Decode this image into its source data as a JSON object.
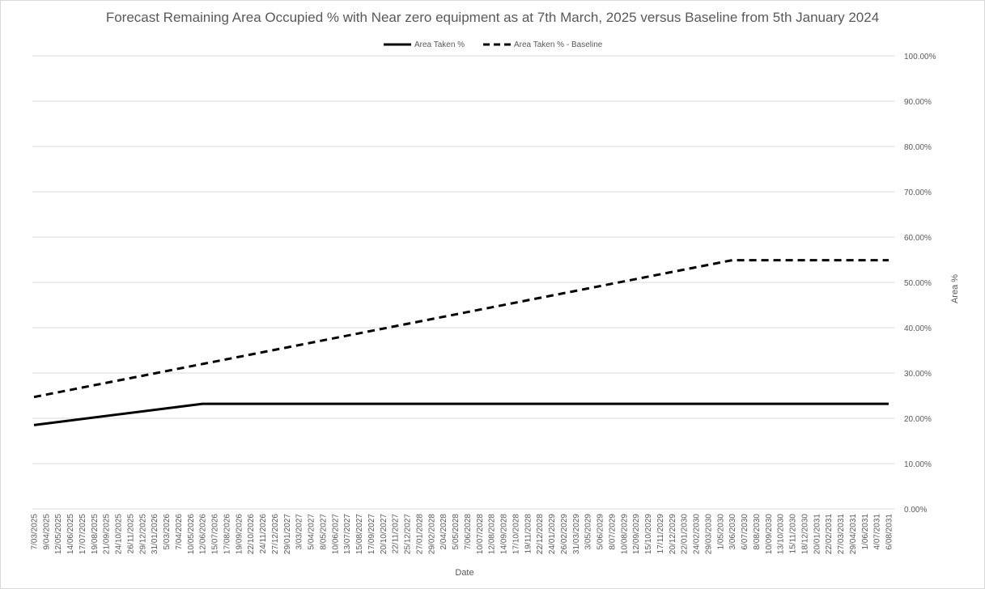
{
  "chart_data": {
    "type": "line",
    "title": "Forecast Remaining Area Occupied % with Near zero equipment as at 7th March, 2025 versus Baseline from 5th January 2024",
    "xlabel": "Date",
    "ylabel": "Area %",
    "ylim": [
      0,
      100
    ],
    "y_ticks": [
      "0.00%",
      "10.00%",
      "20.00%",
      "30.00%",
      "40.00%",
      "50.00%",
      "60.00%",
      "70.00%",
      "80.00%",
      "90.00%",
      "100.00%"
    ],
    "y_axis_side": "right",
    "grid": true,
    "legend_position": "top",
    "categories": [
      "7/03/2025",
      "9/04/2025",
      "12/05/2025",
      "14/06/2025",
      "17/07/2025",
      "19/08/2025",
      "21/09/2025",
      "24/10/2025",
      "26/11/2025",
      "29/12/2025",
      "31/01/2026",
      "5/03/2026",
      "7/04/2026",
      "10/05/2026",
      "12/06/2026",
      "15/07/2026",
      "17/08/2026",
      "19/09/2026",
      "22/10/2026",
      "24/11/2026",
      "27/12/2026",
      "29/01/2027",
      "3/03/2027",
      "5/04/2027",
      "8/05/2027",
      "10/06/2027",
      "13/07/2027",
      "15/08/2027",
      "17/09/2027",
      "20/10/2027",
      "22/11/2027",
      "25/12/2027",
      "27/01/2028",
      "29/02/2028",
      "2/04/2028",
      "5/05/2028",
      "7/06/2028",
      "10/07/2028",
      "12/08/2028",
      "14/09/2028",
      "17/10/2028",
      "19/11/2028",
      "22/12/2028",
      "24/01/2029",
      "26/02/2029",
      "31/03/2029",
      "3/05/2029",
      "5/06/2029",
      "8/07/2029",
      "10/08/2029",
      "12/09/2029",
      "15/10/2029",
      "17/11/2029",
      "20/12/2029",
      "22/01/2030",
      "24/02/2030",
      "29/03/2030",
      "1/05/2030",
      "3/06/2030",
      "6/07/2030",
      "8/08/2030",
      "10/09/2030",
      "13/10/2030",
      "15/11/2030",
      "18/12/2030",
      "20/01/2031",
      "22/02/2031",
      "27/03/2031",
      "29/04/2031",
      "1/06/2031",
      "4/07/2031",
      "6/08/2031"
    ],
    "series": [
      {
        "name": "Area Taken %",
        "style": "solid",
        "color": "#000000",
        "points": [
          {
            "x": "7/03/2025",
            "y": 18.5
          },
          {
            "x": "12/06/2026",
            "y": 23.2
          },
          {
            "x": "6/08/2031",
            "y": 23.2
          }
        ]
      },
      {
        "name": "Area Taken % - Baseline",
        "style": "dashed",
        "color": "#000000",
        "points": [
          {
            "x": "7/03/2025",
            "y": 24.7
          },
          {
            "x": "3/06/2030",
            "y": 54.9
          },
          {
            "x": "6/08/2031",
            "y": 54.9
          }
        ]
      }
    ]
  }
}
